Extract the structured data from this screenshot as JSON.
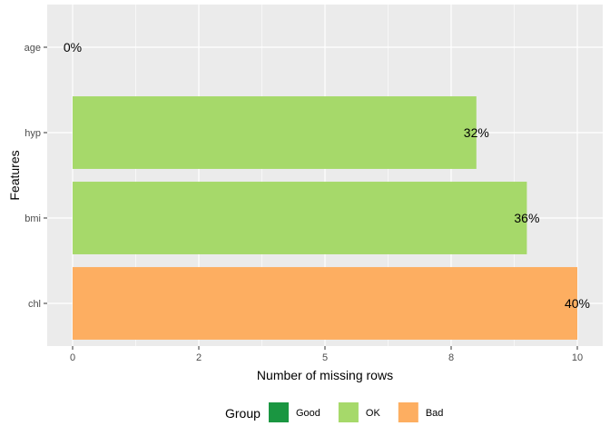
{
  "chart_data": {
    "type": "bar",
    "orientation": "horizontal",
    "categories": [
      "age",
      "hyp",
      "bmi",
      "chl"
    ],
    "values": [
      0,
      8,
      9,
      10
    ],
    "data_labels": [
      "0%",
      "32%",
      "36%",
      "40%"
    ],
    "groups": [
      "OK",
      "OK",
      "OK",
      "Bad"
    ],
    "xlabel": "Number of missing rows",
    "ylabel": "Features",
    "xlim": [
      0,
      10
    ],
    "x_tick_labels": [
      "0",
      "2",
      "5",
      "8",
      "10"
    ],
    "grid": true,
    "legend": {
      "title": "Group",
      "placement": "bottom",
      "entries": [
        {
          "label": "Good",
          "color": "#1a9641"
        },
        {
          "label": "OK",
          "color": "#a6d96a"
        },
        {
          "label": "Bad",
          "color": "#fdae61"
        }
      ]
    },
    "panel_background": "#ebebeb",
    "grid_color": "#ffffff"
  }
}
